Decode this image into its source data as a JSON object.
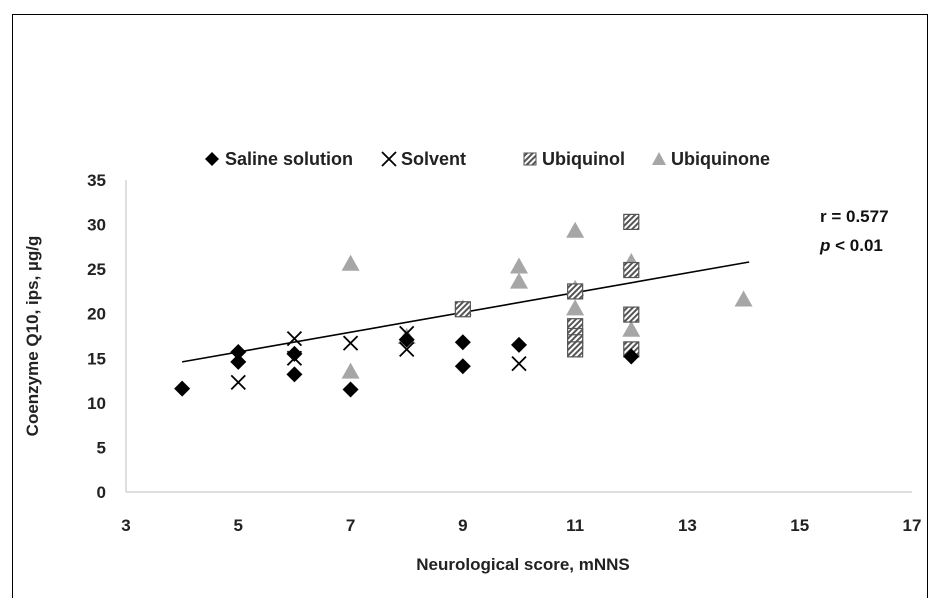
{
  "chart_data": {
    "type": "scatter",
    "title": "",
    "xlabel": "Neurological score, mNNS",
    "ylabel": "Coenzyme Q10, ips, µg/g",
    "xlim": [
      3,
      17
    ],
    "ylim": [
      0,
      35
    ],
    "xticks": [
      3,
      5,
      7,
      9,
      11,
      13,
      15,
      17
    ],
    "yticks": [
      0,
      5,
      10,
      15,
      20,
      25,
      30,
      35
    ],
    "grid": false,
    "legend_position": "top",
    "series": [
      {
        "name": "Saline solution",
        "marker": "diamond",
        "color": "#000000",
        "points": [
          [
            4,
            11.6
          ],
          [
            5,
            15.7
          ],
          [
            5,
            14.6
          ],
          [
            6,
            15.5
          ],
          [
            6,
            13.2
          ],
          [
            7,
            11.5
          ],
          [
            8,
            17.1
          ],
          [
            9,
            16.8
          ],
          [
            9,
            14.1
          ],
          [
            10,
            16.5
          ],
          [
            12,
            15.2
          ]
        ]
      },
      {
        "name": "Solvent",
        "marker": "x",
        "color": "#000000",
        "points": [
          [
            5,
            12.3
          ],
          [
            6,
            17.2
          ],
          [
            6,
            15.0
          ],
          [
            7,
            16.7
          ],
          [
            8,
            17.8
          ],
          [
            8,
            16.0
          ],
          [
            10,
            14.4
          ]
        ]
      },
      {
        "name": "Ubiquinol",
        "marker": "hatched-square",
        "color": "#555555",
        "points": [
          [
            9,
            20.5
          ],
          [
            11,
            22.5
          ],
          [
            11,
            18.6
          ],
          [
            11,
            17.5
          ],
          [
            11,
            16.8
          ],
          [
            11,
            16.0
          ],
          [
            12,
            30.3
          ],
          [
            12,
            24.9
          ],
          [
            12,
            19.9
          ],
          [
            12,
            16.0
          ]
        ]
      },
      {
        "name": "Ubiquinone",
        "marker": "triangle",
        "color": "#a6a6a6",
        "points": [
          [
            7,
            25.6
          ],
          [
            7,
            13.5
          ],
          [
            8,
            17.4
          ],
          [
            9,
            20.6
          ],
          [
            10,
            25.3
          ],
          [
            10,
            23.6
          ],
          [
            11,
            29.3
          ],
          [
            11,
            22.8
          ],
          [
            11,
            20.6
          ],
          [
            12,
            25.8
          ],
          [
            12,
            18.2
          ],
          [
            14,
            21.6
          ]
        ]
      }
    ],
    "trendline": {
      "x": [
        4,
        14.1
      ],
      "y": [
        14.6,
        25.8
      ],
      "color": "#000000"
    },
    "annotations": {
      "r_text": "r = 0.577",
      "p_symbol": "p",
      "p_rest": " < 0.01"
    }
  }
}
